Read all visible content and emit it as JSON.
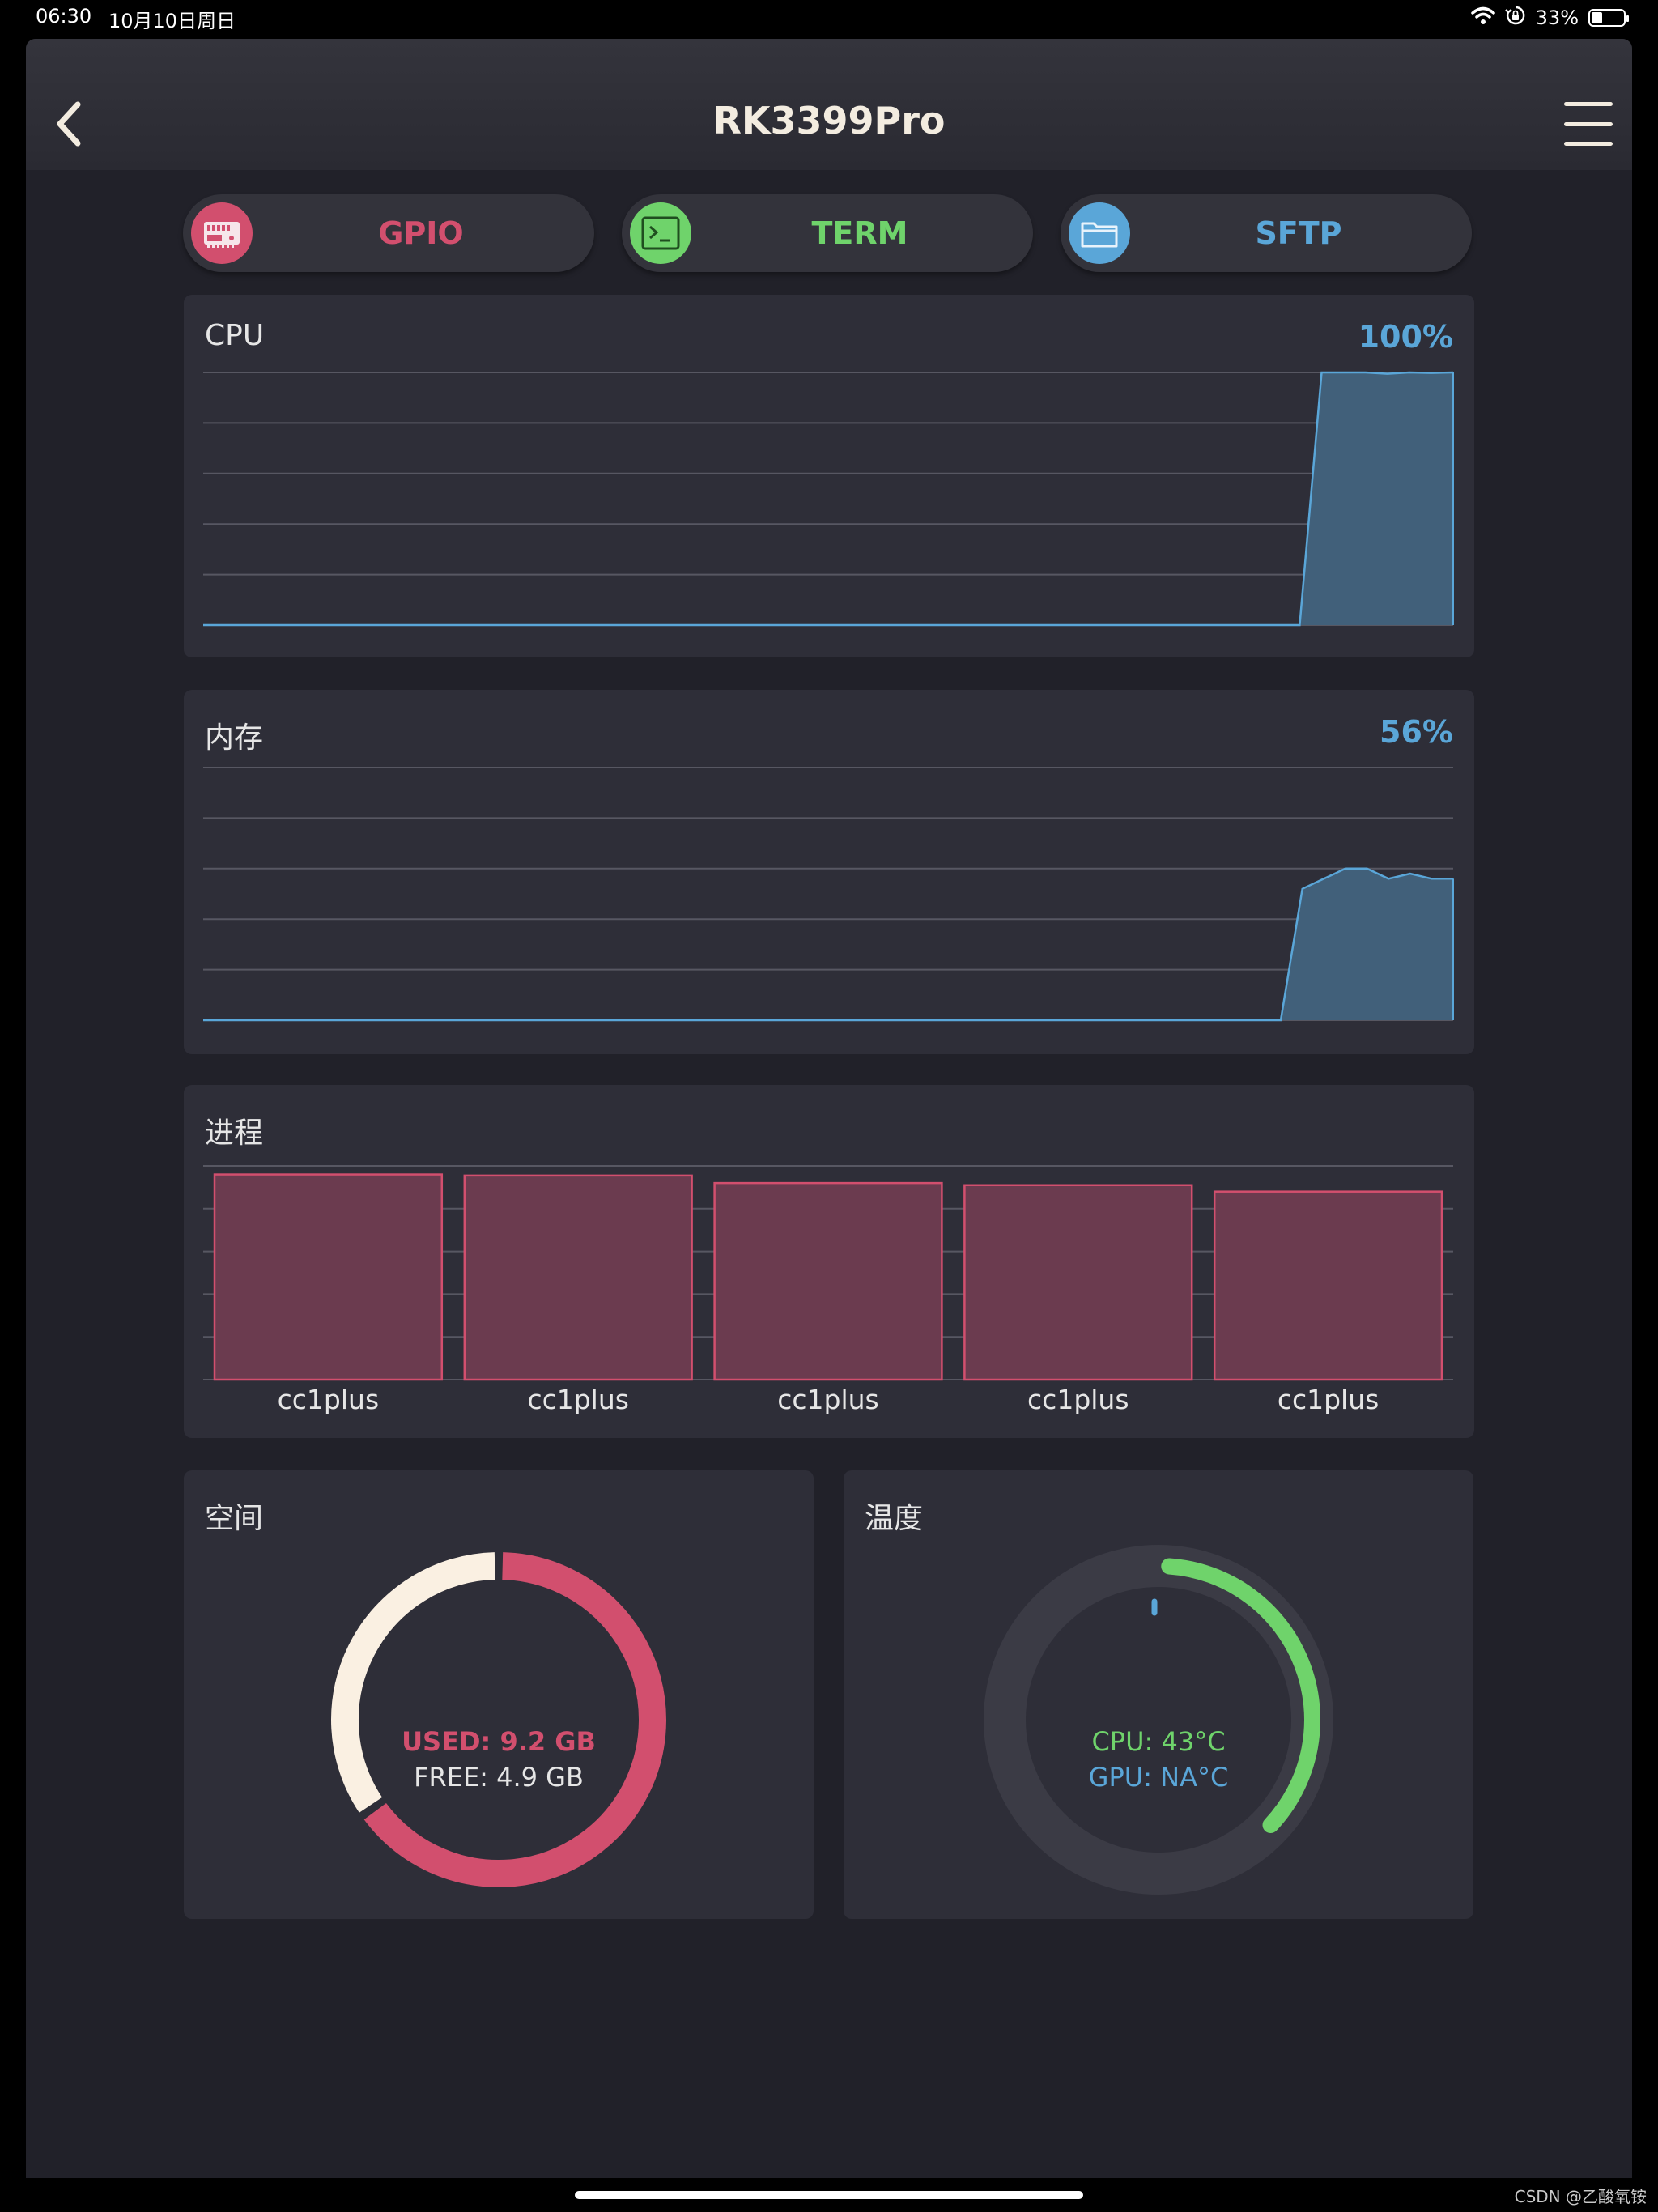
{
  "status_bar": {
    "time": "06:30",
    "date": "10月10日周日",
    "battery": "33%",
    "battery_level": 0.33
  },
  "nav": {
    "title": "RK3399Pro",
    "back_icon": "chevron-left-icon",
    "menu_icon": "hamburger-menu-icon"
  },
  "tabs": [
    {
      "label": "GPIO",
      "color": "#d24f6e",
      "icon": "chip-icon"
    },
    {
      "label": "TERM",
      "color": "#6fd36b",
      "icon": "terminal-icon"
    },
    {
      "label": "SFTP",
      "color": "#5aa6d8",
      "icon": "folder-icon"
    }
  ],
  "cpu": {
    "title": "CPU",
    "value": "100%",
    "chart_data": {
      "type": "area",
      "series": [
        {
          "values": [
            0,
            0,
            0,
            0,
            0,
            0,
            0,
            0,
            0,
            0,
            0,
            0,
            0,
            0,
            0,
            0,
            0,
            0,
            0,
            0,
            0,
            0,
            0,
            0,
            0,
            0,
            0,
            0,
            0,
            0,
            0,
            0,
            0,
            0,
            0,
            0,
            0,
            0,
            0,
            0,
            0,
            0,
            0,
            0,
            0,
            0,
            0,
            0,
            0,
            0,
            0,
            100,
            100,
            100,
            99.5,
            100,
            99.8,
            100
          ]
        }
      ],
      "ylim": [
        0,
        100
      ],
      "grid": true,
      "color": "#5aa6d8"
    }
  },
  "memory": {
    "title": "内存",
    "value": "56%",
    "chart_data": {
      "type": "area",
      "series": [
        {
          "values": [
            0,
            0,
            0,
            0,
            0,
            0,
            0,
            0,
            0,
            0,
            0,
            0,
            0,
            0,
            0,
            0,
            0,
            0,
            0,
            0,
            0,
            0,
            0,
            0,
            0,
            0,
            0,
            0,
            0,
            0,
            0,
            0,
            0,
            0,
            0,
            0,
            0,
            0,
            0,
            0,
            0,
            0,
            0,
            0,
            0,
            0,
            0,
            0,
            0,
            0,
            0,
            52,
            56,
            60,
            60,
            56,
            58,
            56,
            56
          ]
        }
      ],
      "ylim": [
        0,
        100
      ],
      "grid": true,
      "color": "#5aa6d8"
    }
  },
  "process": {
    "title": "进程",
    "chart_data": {
      "type": "bar",
      "categories": [
        "cc1plus",
        "cc1plus",
        "cc1plus",
        "cc1plus",
        "cc1plus"
      ],
      "values": [
        96,
        95.5,
        92,
        91,
        88
      ],
      "ylim": [
        0,
        100
      ],
      "grid": true,
      "color": "#d24f6e"
    }
  },
  "storage": {
    "title": "空间",
    "used_label": "USED: 9.2 GB",
    "free_label": "FREE: 4.9 GB",
    "chart_data": {
      "type": "pie",
      "categories": [
        "USED",
        "FREE"
      ],
      "values": [
        9.2,
        4.9
      ],
      "colors": [
        "#d24f6e",
        "#faf0e2"
      ]
    }
  },
  "temperature": {
    "title": "温度",
    "cpu_label": "CPU: 43°C",
    "gpu_label": "GPU: NA°C",
    "chart_data": {
      "type": "gauge",
      "cpu_fraction": 0.37,
      "colors": {
        "cpu": "#6fd36b",
        "gpu": "#5aa6d8",
        "track": "#3b3b45"
      }
    }
  },
  "watermark": "CSDN @乙酸氧铵"
}
